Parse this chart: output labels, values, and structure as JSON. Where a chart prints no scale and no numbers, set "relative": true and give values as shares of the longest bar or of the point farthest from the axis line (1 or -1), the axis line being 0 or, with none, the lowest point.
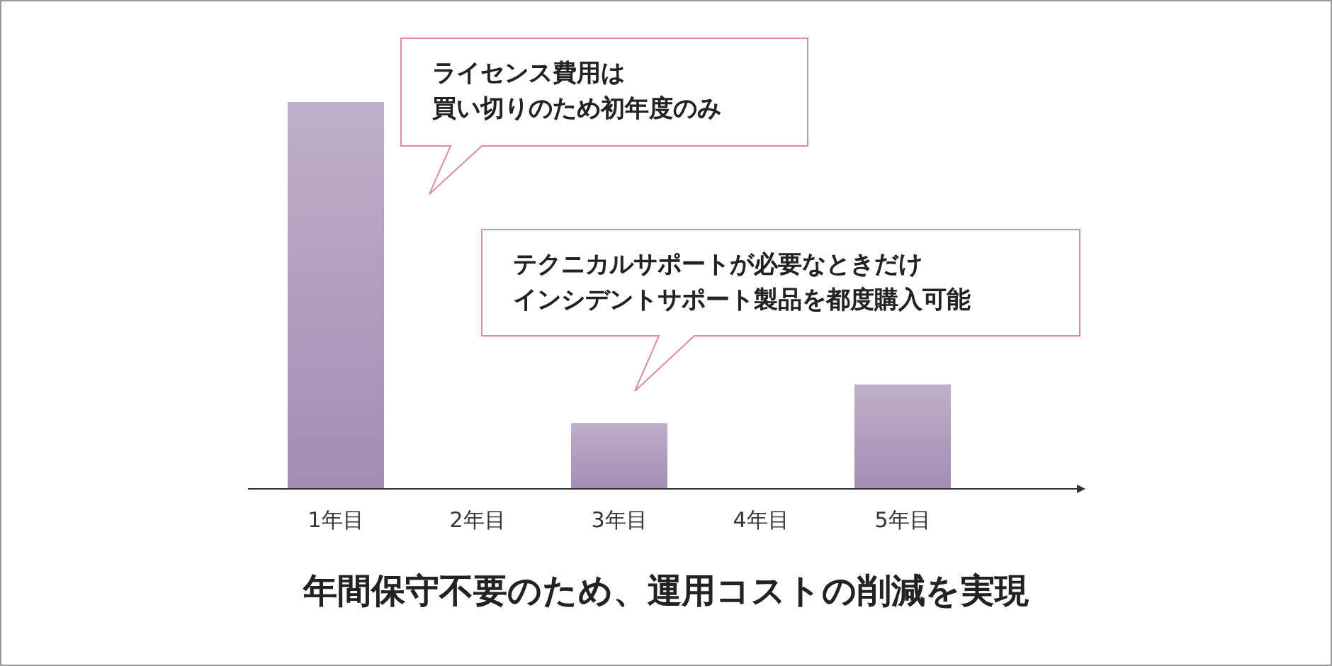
{
  "chart_data": {
    "type": "bar",
    "title": "年間保守不要のため、運用コストの削減を実現",
    "categories": [
      "1年目",
      "2年目",
      "3年目",
      "4年目",
      "5年目"
    ],
    "values": [
      1,
      0,
      0.17,
      0,
      0.27
    ],
    "color": "#a28db3",
    "relative": true,
    "annotations": [
      "ライセンス費用は",
      "買い切りのため初年度のみ",
      "テクニカルサポートが必要なときだけ",
      "インシデントサポート製品を都度購入可能"
    ]
  }
}
